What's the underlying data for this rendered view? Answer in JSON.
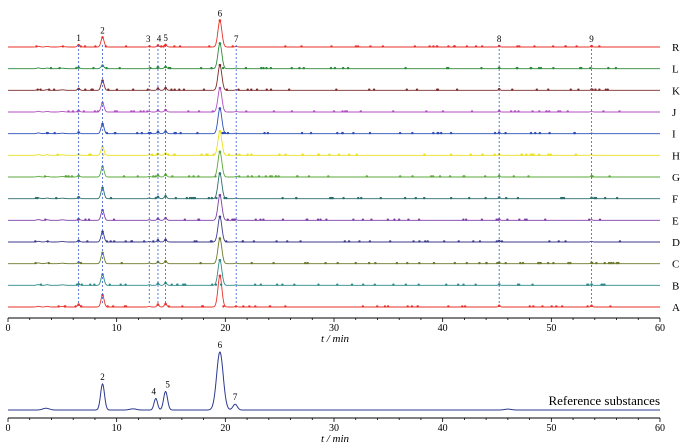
{
  "chart_data": [
    {
      "type": "line",
      "xlabel": "t / min",
      "xlim": [
        0,
        60
      ],
      "xticks": [
        0,
        10,
        20,
        30,
        40,
        50,
        60
      ],
      "grid": false,
      "legend": "series labels at right end of each trace",
      "peaks": [
        {
          "label": "1",
          "x": 6.5
        },
        {
          "label": "2",
          "x": 8.7
        },
        {
          "label": "3",
          "x": 13.0
        },
        {
          "label": "4",
          "x": 13.8
        },
        {
          "label": "5",
          "x": 14.5
        },
        {
          "label": "6",
          "x": 19.5
        },
        {
          "label": "7",
          "x": 21.0
        },
        {
          "label": "8",
          "x": 45.2
        },
        {
          "label": "9",
          "x": 53.7
        }
      ],
      "series": [
        {
          "name": "R",
          "color": "#e8312a",
          "heights": [
            0.15,
            0.8,
            0.05,
            0.13,
            0.17,
            2.2,
            0.05,
            0.08,
            0.07
          ]
        },
        {
          "name": "L",
          "color": "#2e8b3e",
          "heights": [
            0.1,
            0.25,
            0.05,
            0.12,
            0.15,
            2.1,
            0.05,
            0.07,
            0.06
          ]
        },
        {
          "name": "K",
          "color": "#7a2a2a",
          "heights": [
            0.12,
            0.8,
            0.05,
            0.15,
            0.18,
            2.1,
            0.05,
            0.09,
            0.07
          ]
        },
        {
          "name": "J",
          "color": "#b04fc0",
          "heights": [
            0.1,
            0.75,
            0.05,
            0.13,
            0.16,
            2.0,
            0.05,
            0.08,
            0.06
          ]
        },
        {
          "name": "I",
          "color": "#2e4fb8",
          "heights": [
            0.1,
            0.8,
            0.05,
            0.14,
            0.18,
            2.1,
            0.05,
            0.08,
            0.06
          ]
        },
        {
          "name": "H",
          "color": "#e8e020",
          "heights": [
            0.08,
            0.7,
            0.05,
            0.12,
            0.15,
            2.0,
            0.05,
            0.07,
            0.06
          ]
        },
        {
          "name": "G",
          "color": "#5aa83a",
          "heights": [
            0.1,
            0.85,
            0.05,
            0.14,
            0.18,
            2.1,
            0.05,
            0.08,
            0.07
          ]
        },
        {
          "name": "F",
          "color": "#2a6e6e",
          "heights": [
            0.12,
            0.9,
            0.05,
            0.15,
            0.2,
            2.1,
            0.05,
            0.09,
            0.07
          ]
        },
        {
          "name": "E",
          "color": "#7a3fa8",
          "heights": [
            0.1,
            0.85,
            0.05,
            0.14,
            0.18,
            2.1,
            0.05,
            0.08,
            0.06
          ]
        },
        {
          "name": "D",
          "color": "#3a3a8a",
          "heights": [
            0.1,
            0.85,
            0.05,
            0.14,
            0.18,
            2.1,
            0.05,
            0.08,
            0.06
          ]
        },
        {
          "name": "C",
          "color": "#6b7a2a",
          "heights": [
            0.1,
            0.9,
            0.05,
            0.14,
            0.19,
            2.1,
            0.05,
            0.08,
            0.07
          ]
        },
        {
          "name": "B",
          "color": "#2e8a8a",
          "heights": [
            0.1,
            0.9,
            0.05,
            0.14,
            0.19,
            2.1,
            0.05,
            0.08,
            0.07
          ]
        },
        {
          "name": "A",
          "color": "#e8312a",
          "heights": [
            0.2,
            1.0,
            0.05,
            0.2,
            0.25,
            2.6,
            0.05,
            0.1,
            0.1
          ]
        }
      ]
    },
    {
      "type": "line",
      "xlabel": "t / min",
      "xlim": [
        0,
        60
      ],
      "xticks": [
        0,
        10,
        20,
        30,
        40,
        50,
        60
      ],
      "grid": false,
      "annotation": "Reference substances",
      "series": [
        {
          "name": "",
          "color": "#2b3a8f",
          "peaks": [
            {
              "label": "2",
              "x": 8.7,
              "height": 0.45
            },
            {
              "label": "4",
              "x": 13.6,
              "height": 0.2
            },
            {
              "label": "5",
              "x": 14.5,
              "height": 0.32
            },
            {
              "label": "6",
              "x": 19.5,
              "height": 1.0
            },
            {
              "label": "7",
              "x": 20.9,
              "height": 0.1
            }
          ]
        }
      ]
    }
  ]
}
